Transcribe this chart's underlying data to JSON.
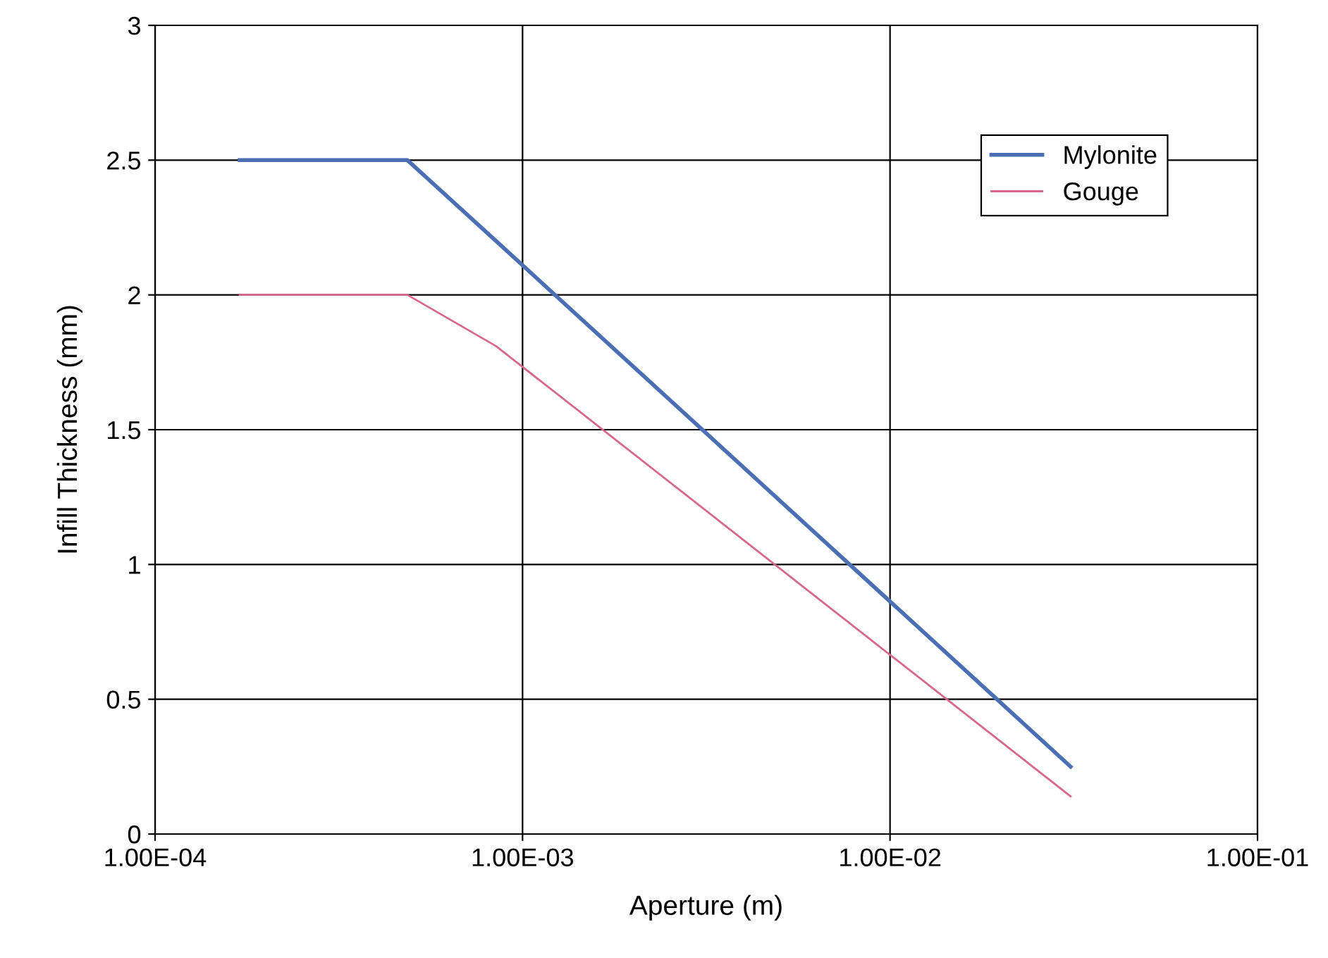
{
  "chart_data": {
    "type": "line",
    "xlabel": "Aperture (m)",
    "ylabel": "Infill Thickness (mm)",
    "log": "x",
    "xlim": [
      0.0001,
      0.1
    ],
    "xticks": [
      {
        "value": 0.0001,
        "label": "1.00E-04"
      },
      {
        "value": 0.001,
        "label": "1.00E-03"
      },
      {
        "value": 0.01,
        "label": "1.00E-02"
      },
      {
        "value": 0.1,
        "label": "1.00E-01"
      }
    ],
    "ylim": [
      0,
      3
    ],
    "yticks": [
      0,
      0.5,
      1,
      1.5,
      2,
      2.5,
      3
    ],
    "grid": true,
    "legend": "top right",
    "marker": "none",
    "line_style": "solid",
    "series": [
      {
        "name": "Mylonite",
        "color": "#4a6fb5",
        "x": [
          0.00017,
          0.000486,
          0.000847,
          0.031
        ],
        "values": [
          2.5,
          2.5,
          2.2,
          0.25
        ]
      },
      {
        "name": "Gouge",
        "color": "#d9668e",
        "x": [
          0.00017,
          0.000486,
          0.000847,
          0.031
        ],
        "values": [
          2.0,
          2.0,
          1.81,
          0.14
        ]
      }
    ]
  }
}
